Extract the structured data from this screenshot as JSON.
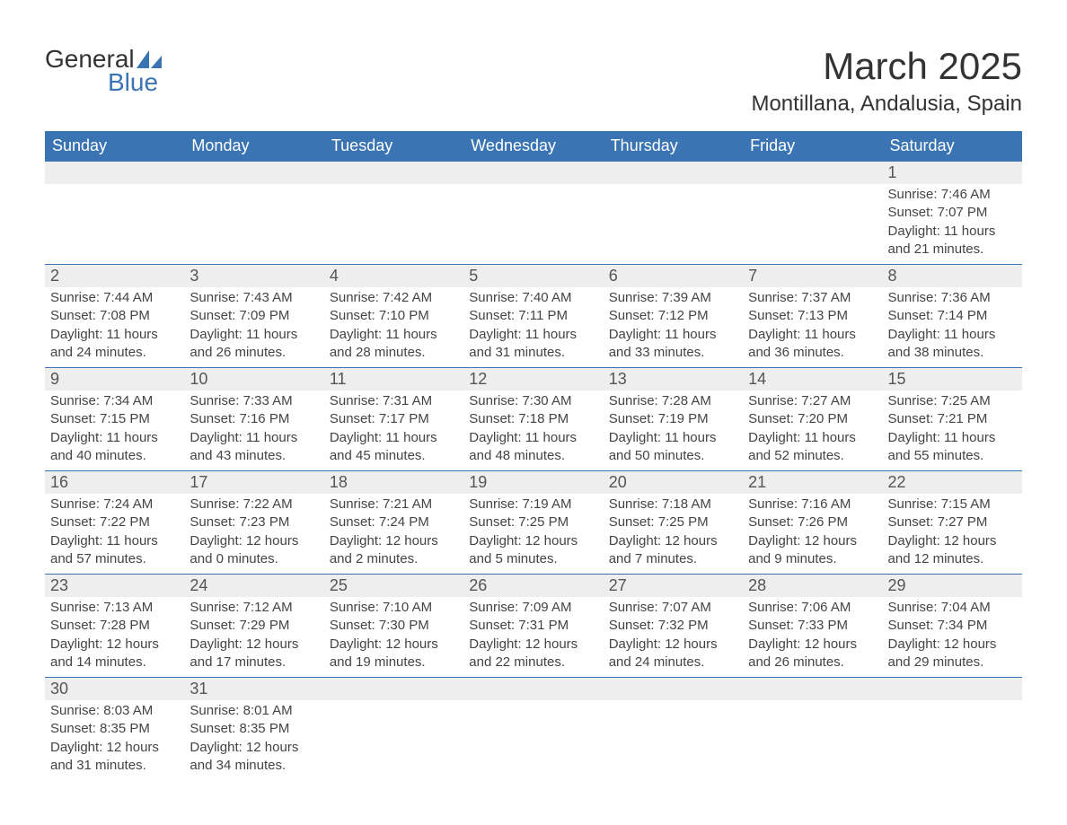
{
  "brand": {
    "part1": "General",
    "part2": "Blue",
    "logo_color": "#3a74b3"
  },
  "title": "March 2025",
  "location": "Montillana, Andalusia, Spain",
  "colors": {
    "header_bg": "#3a74b3",
    "header_text": "#ffffff",
    "daynum_bg": "#eeeeee",
    "border": "#3a74b3",
    "text": "#444444",
    "background": "#ffffff"
  },
  "typography": {
    "title_fontsize": 42,
    "location_fontsize": 24,
    "weekday_fontsize": 18,
    "body_fontsize": 15
  },
  "weekdays": [
    "Sunday",
    "Monday",
    "Tuesday",
    "Wednesday",
    "Thursday",
    "Friday",
    "Saturday"
  ],
  "weeks": [
    [
      {
        "day": "",
        "sunrise": "",
        "sunset": "",
        "daylight1": "",
        "daylight2": ""
      },
      {
        "day": "",
        "sunrise": "",
        "sunset": "",
        "daylight1": "",
        "daylight2": ""
      },
      {
        "day": "",
        "sunrise": "",
        "sunset": "",
        "daylight1": "",
        "daylight2": ""
      },
      {
        "day": "",
        "sunrise": "",
        "sunset": "",
        "daylight1": "",
        "daylight2": ""
      },
      {
        "day": "",
        "sunrise": "",
        "sunset": "",
        "daylight1": "",
        "daylight2": ""
      },
      {
        "day": "",
        "sunrise": "",
        "sunset": "",
        "daylight1": "",
        "daylight2": ""
      },
      {
        "day": "1",
        "sunrise": "Sunrise: 7:46 AM",
        "sunset": "Sunset: 7:07 PM",
        "daylight1": "Daylight: 11 hours",
        "daylight2": "and 21 minutes."
      }
    ],
    [
      {
        "day": "2",
        "sunrise": "Sunrise: 7:44 AM",
        "sunset": "Sunset: 7:08 PM",
        "daylight1": "Daylight: 11 hours",
        "daylight2": "and 24 minutes."
      },
      {
        "day": "3",
        "sunrise": "Sunrise: 7:43 AM",
        "sunset": "Sunset: 7:09 PM",
        "daylight1": "Daylight: 11 hours",
        "daylight2": "and 26 minutes."
      },
      {
        "day": "4",
        "sunrise": "Sunrise: 7:42 AM",
        "sunset": "Sunset: 7:10 PM",
        "daylight1": "Daylight: 11 hours",
        "daylight2": "and 28 minutes."
      },
      {
        "day": "5",
        "sunrise": "Sunrise: 7:40 AM",
        "sunset": "Sunset: 7:11 PM",
        "daylight1": "Daylight: 11 hours",
        "daylight2": "and 31 minutes."
      },
      {
        "day": "6",
        "sunrise": "Sunrise: 7:39 AM",
        "sunset": "Sunset: 7:12 PM",
        "daylight1": "Daylight: 11 hours",
        "daylight2": "and 33 minutes."
      },
      {
        "day": "7",
        "sunrise": "Sunrise: 7:37 AM",
        "sunset": "Sunset: 7:13 PM",
        "daylight1": "Daylight: 11 hours",
        "daylight2": "and 36 minutes."
      },
      {
        "day": "8",
        "sunrise": "Sunrise: 7:36 AM",
        "sunset": "Sunset: 7:14 PM",
        "daylight1": "Daylight: 11 hours",
        "daylight2": "and 38 minutes."
      }
    ],
    [
      {
        "day": "9",
        "sunrise": "Sunrise: 7:34 AM",
        "sunset": "Sunset: 7:15 PM",
        "daylight1": "Daylight: 11 hours",
        "daylight2": "and 40 minutes."
      },
      {
        "day": "10",
        "sunrise": "Sunrise: 7:33 AM",
        "sunset": "Sunset: 7:16 PM",
        "daylight1": "Daylight: 11 hours",
        "daylight2": "and 43 minutes."
      },
      {
        "day": "11",
        "sunrise": "Sunrise: 7:31 AM",
        "sunset": "Sunset: 7:17 PM",
        "daylight1": "Daylight: 11 hours",
        "daylight2": "and 45 minutes."
      },
      {
        "day": "12",
        "sunrise": "Sunrise: 7:30 AM",
        "sunset": "Sunset: 7:18 PM",
        "daylight1": "Daylight: 11 hours",
        "daylight2": "and 48 minutes."
      },
      {
        "day": "13",
        "sunrise": "Sunrise: 7:28 AM",
        "sunset": "Sunset: 7:19 PM",
        "daylight1": "Daylight: 11 hours",
        "daylight2": "and 50 minutes."
      },
      {
        "day": "14",
        "sunrise": "Sunrise: 7:27 AM",
        "sunset": "Sunset: 7:20 PM",
        "daylight1": "Daylight: 11 hours",
        "daylight2": "and 52 minutes."
      },
      {
        "day": "15",
        "sunrise": "Sunrise: 7:25 AM",
        "sunset": "Sunset: 7:21 PM",
        "daylight1": "Daylight: 11 hours",
        "daylight2": "and 55 minutes."
      }
    ],
    [
      {
        "day": "16",
        "sunrise": "Sunrise: 7:24 AM",
        "sunset": "Sunset: 7:22 PM",
        "daylight1": "Daylight: 11 hours",
        "daylight2": "and 57 minutes."
      },
      {
        "day": "17",
        "sunrise": "Sunrise: 7:22 AM",
        "sunset": "Sunset: 7:23 PM",
        "daylight1": "Daylight: 12 hours",
        "daylight2": "and 0 minutes."
      },
      {
        "day": "18",
        "sunrise": "Sunrise: 7:21 AM",
        "sunset": "Sunset: 7:24 PM",
        "daylight1": "Daylight: 12 hours",
        "daylight2": "and 2 minutes."
      },
      {
        "day": "19",
        "sunrise": "Sunrise: 7:19 AM",
        "sunset": "Sunset: 7:25 PM",
        "daylight1": "Daylight: 12 hours",
        "daylight2": "and 5 minutes."
      },
      {
        "day": "20",
        "sunrise": "Sunrise: 7:18 AM",
        "sunset": "Sunset: 7:25 PM",
        "daylight1": "Daylight: 12 hours",
        "daylight2": "and 7 minutes."
      },
      {
        "day": "21",
        "sunrise": "Sunrise: 7:16 AM",
        "sunset": "Sunset: 7:26 PM",
        "daylight1": "Daylight: 12 hours",
        "daylight2": "and 9 minutes."
      },
      {
        "day": "22",
        "sunrise": "Sunrise: 7:15 AM",
        "sunset": "Sunset: 7:27 PM",
        "daylight1": "Daylight: 12 hours",
        "daylight2": "and 12 minutes."
      }
    ],
    [
      {
        "day": "23",
        "sunrise": "Sunrise: 7:13 AM",
        "sunset": "Sunset: 7:28 PM",
        "daylight1": "Daylight: 12 hours",
        "daylight2": "and 14 minutes."
      },
      {
        "day": "24",
        "sunrise": "Sunrise: 7:12 AM",
        "sunset": "Sunset: 7:29 PM",
        "daylight1": "Daylight: 12 hours",
        "daylight2": "and 17 minutes."
      },
      {
        "day": "25",
        "sunrise": "Sunrise: 7:10 AM",
        "sunset": "Sunset: 7:30 PM",
        "daylight1": "Daylight: 12 hours",
        "daylight2": "and 19 minutes."
      },
      {
        "day": "26",
        "sunrise": "Sunrise: 7:09 AM",
        "sunset": "Sunset: 7:31 PM",
        "daylight1": "Daylight: 12 hours",
        "daylight2": "and 22 minutes."
      },
      {
        "day": "27",
        "sunrise": "Sunrise: 7:07 AM",
        "sunset": "Sunset: 7:32 PM",
        "daylight1": "Daylight: 12 hours",
        "daylight2": "and 24 minutes."
      },
      {
        "day": "28",
        "sunrise": "Sunrise: 7:06 AM",
        "sunset": "Sunset: 7:33 PM",
        "daylight1": "Daylight: 12 hours",
        "daylight2": "and 26 minutes."
      },
      {
        "day": "29",
        "sunrise": "Sunrise: 7:04 AM",
        "sunset": "Sunset: 7:34 PM",
        "daylight1": "Daylight: 12 hours",
        "daylight2": "and 29 minutes."
      }
    ],
    [
      {
        "day": "30",
        "sunrise": "Sunrise: 8:03 AM",
        "sunset": "Sunset: 8:35 PM",
        "daylight1": "Daylight: 12 hours",
        "daylight2": "and 31 minutes."
      },
      {
        "day": "31",
        "sunrise": "Sunrise: 8:01 AM",
        "sunset": "Sunset: 8:35 PM",
        "daylight1": "Daylight: 12 hours",
        "daylight2": "and 34 minutes."
      },
      {
        "day": "",
        "sunrise": "",
        "sunset": "",
        "daylight1": "",
        "daylight2": ""
      },
      {
        "day": "",
        "sunrise": "",
        "sunset": "",
        "daylight1": "",
        "daylight2": ""
      },
      {
        "day": "",
        "sunrise": "",
        "sunset": "",
        "daylight1": "",
        "daylight2": ""
      },
      {
        "day": "",
        "sunrise": "",
        "sunset": "",
        "daylight1": "",
        "daylight2": ""
      },
      {
        "day": "",
        "sunrise": "",
        "sunset": "",
        "daylight1": "",
        "daylight2": ""
      }
    ]
  ]
}
